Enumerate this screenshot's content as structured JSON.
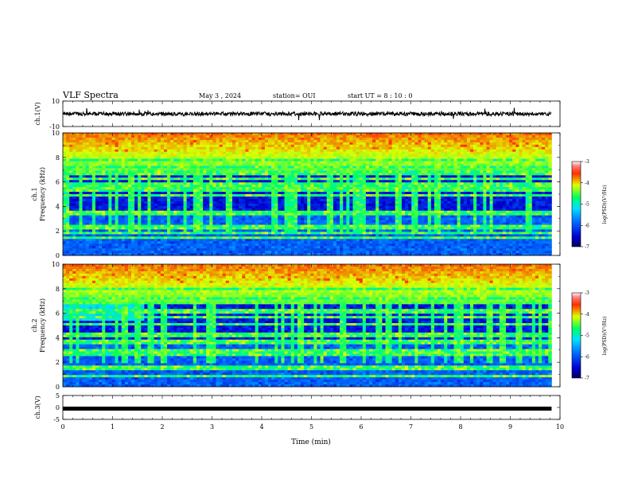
{
  "header": {
    "title": "VLF Spectra",
    "date": "May 3 , 2024",
    "station": "station= OUI",
    "start": "start UT = 8 : 10 : 0"
  },
  "chart_data": [
    {
      "type": "line",
      "name": "ch1-waveform",
      "ylabel": "ch.1(V)",
      "ylim": [
        -10,
        10
      ],
      "y_ticks": [
        "10",
        "-10"
      ],
      "xlim": [
        0,
        10
      ],
      "baseline_value": 0
    },
    {
      "type": "heatmap",
      "name": "ch1-spectrogram",
      "ylabel_top": "ch.1",
      "ylabel": "Frequency (kHz)",
      "ylim": [
        0,
        10
      ],
      "y_ticks": [
        "0",
        "2",
        "4",
        "6",
        "8",
        "10"
      ],
      "xlim": [
        0,
        10
      ],
      "data_end_min": 9.83,
      "colorbar": {
        "label": "log(PSD)(V²/Hz)",
        "range": [
          -7,
          -3
        ],
        "ticks": [
          "-3",
          "-4",
          "-5",
          "-6",
          "-7"
        ]
      }
    },
    {
      "type": "heatmap",
      "name": "ch2-spectrogram",
      "ylabel_top": "ch.2",
      "ylabel": "Frequency (kHz)",
      "ylim": [
        0,
        10
      ],
      "y_ticks": [
        "0",
        "2",
        "4",
        "6",
        "8",
        "10"
      ],
      "xlim": [
        0,
        10
      ],
      "data_end_min": 9.83,
      "colorbar": {
        "label": "log(PSD)(V²/Hz)",
        "range": [
          -7,
          -3
        ],
        "ticks": [
          "-3",
          "-4",
          "-5",
          "-6",
          "-7"
        ]
      }
    },
    {
      "type": "line",
      "name": "ch3-waveform",
      "ylabel": "ch.3(V)",
      "ylim": [
        -5,
        5
      ],
      "y_ticks": [
        "5",
        "0",
        "-5"
      ],
      "xlim": [
        0,
        10
      ],
      "baseline_value": -0.5,
      "xlabel": "Time (min)",
      "x_ticks": [
        "0",
        "1",
        "2",
        "3",
        "4",
        "5",
        "6",
        "7",
        "8",
        "9",
        "10"
      ]
    }
  ]
}
